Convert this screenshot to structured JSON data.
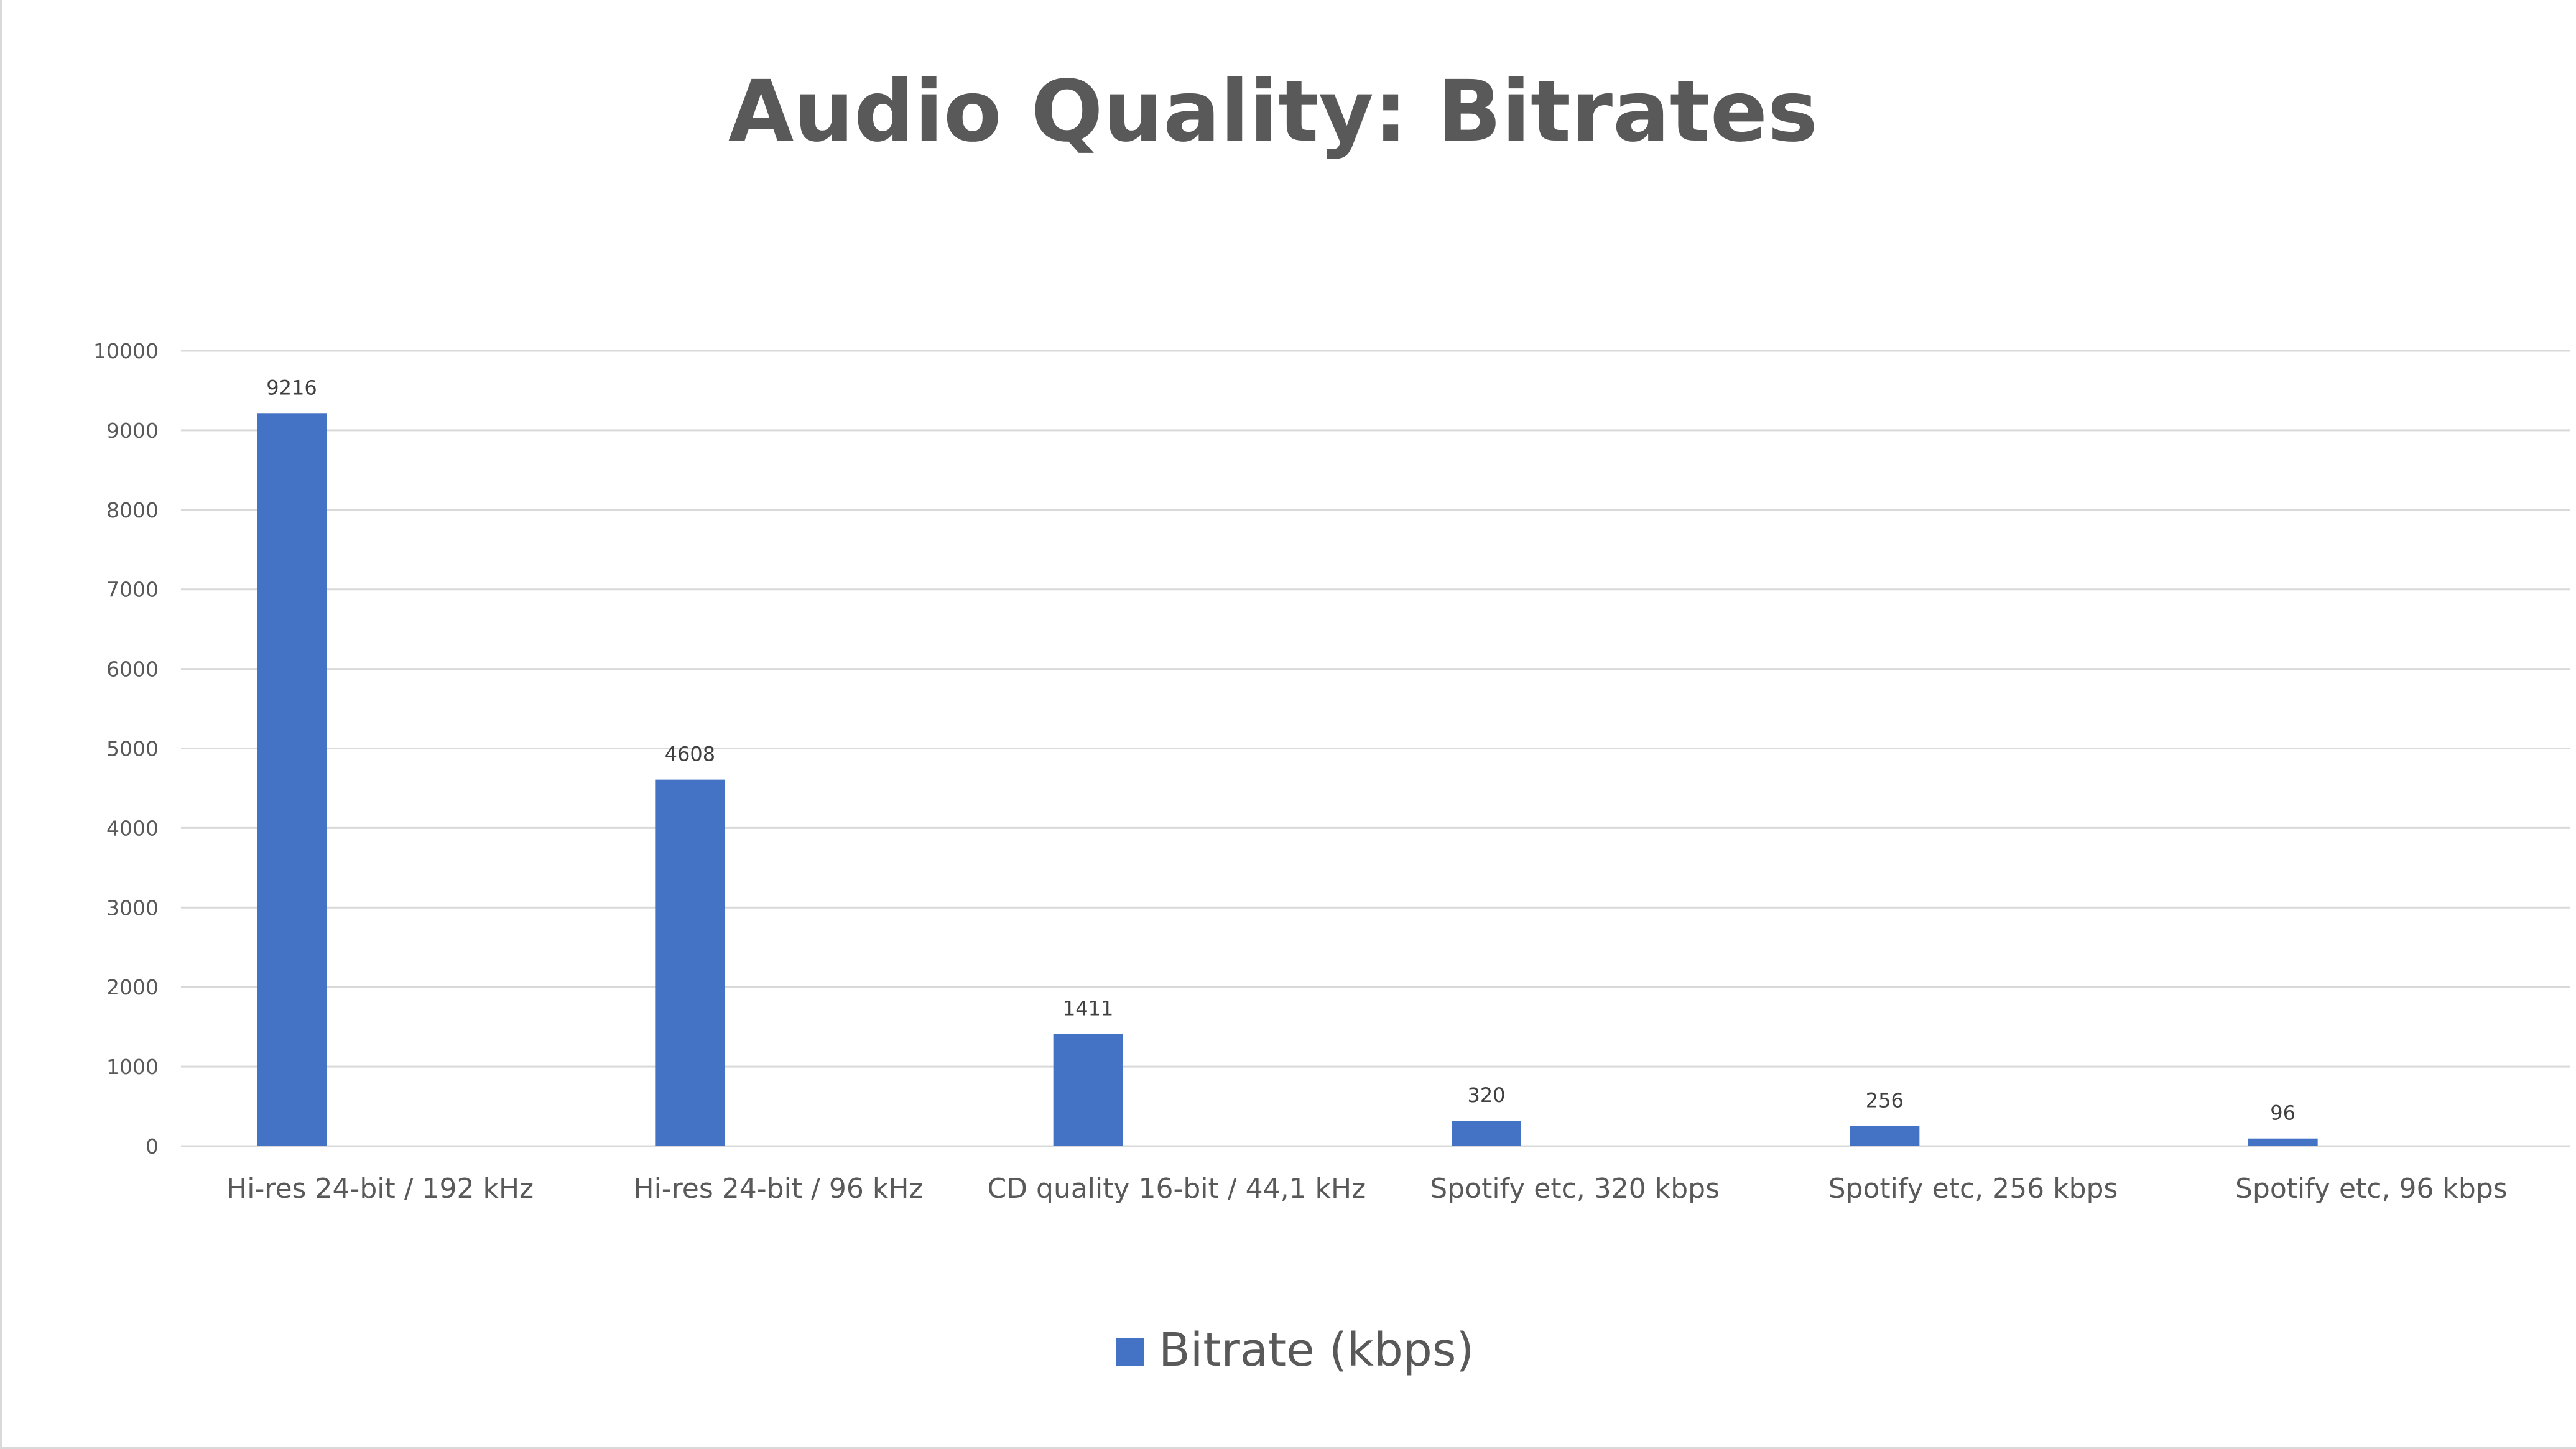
{
  "chart_data": {
    "type": "bar",
    "title": "Audio Quality: Bitrates",
    "categories": [
      "Hi-res 24-bit / 192 kHz",
      "Hi-res 24-bit / 96 kHz",
      "CD quality 16-bit / 44,1 kHz",
      "Spotify etc, 320 kbps",
      "Spotify etc, 256 kbps",
      "Spotify etc, 96 kbps"
    ],
    "series": [
      {
        "name": "Bitrate (kbps)",
        "values": [
          9216,
          4608,
          1411,
          320,
          256,
          96
        ],
        "color": "#4472c4"
      }
    ],
    "ylim": [
      0,
      10000
    ],
    "yticks": [
      0,
      1000,
      2000,
      3000,
      4000,
      5000,
      6000,
      7000,
      8000,
      9000,
      10000
    ],
    "grid": true,
    "legend_position": "bottom",
    "data_labels": true
  },
  "colors": {
    "bar": "#4472c4",
    "gridline": "#d9d9d9",
    "text": "#595959"
  }
}
